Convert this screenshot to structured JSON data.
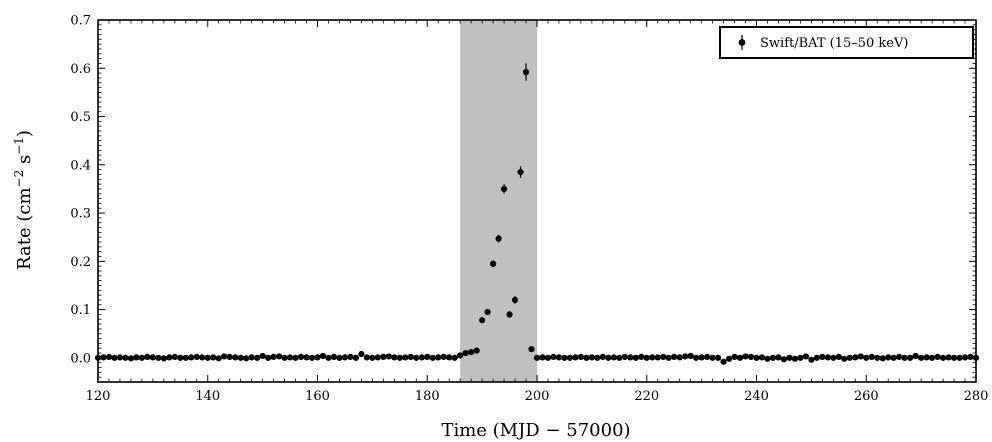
{
  "chart_data": {
    "type": "scatter",
    "xlabel": "Time (MJD − 57000)",
    "ylabel_main": "Rate (cm",
    "ylabel_sup1": "−2",
    "ylabel_mid": " s",
    "ylabel_sup2": "−1",
    "ylabel_end": ")",
    "xlim": [
      120,
      280
    ],
    "ylim": [
      -0.05,
      0.7
    ],
    "xticks": [
      "120",
      "140",
      "160",
      "180",
      "200",
      "220",
      "240",
      "260",
      "280"
    ],
    "yticks": [
      "0.0",
      "0.1",
      "0.2",
      "0.3",
      "0.4",
      "0.5",
      "0.6",
      "0.7"
    ],
    "grid": false,
    "legend_position": "top-right",
    "shaded_region": {
      "x_start": 186,
      "x_end": 200,
      "color": "#c0c0c0"
    },
    "series": [
      {
        "name": "Swift/BAT (15–50 keV)",
        "color": "#000000",
        "x": [
          120,
          121,
          122,
          123,
          124,
          125,
          126,
          127,
          128,
          129,
          130,
          131,
          132,
          133,
          134,
          135,
          136,
          137,
          138,
          139,
          140,
          141,
          142,
          143,
          144,
          145,
          146,
          147,
          148,
          149,
          150,
          151,
          152,
          153,
          154,
          155,
          156,
          157,
          158,
          159,
          160,
          161,
          162,
          163,
          164,
          165,
          166,
          167,
          168,
          169,
          170,
          171,
          172,
          173,
          174,
          175,
          176,
          177,
          178,
          179,
          180,
          181,
          182,
          183,
          184,
          185,
          186,
          187,
          188,
          189,
          190,
          191,
          192,
          193,
          194,
          195,
          196,
          197,
          198,
          199,
          200,
          201,
          202,
          203,
          204,
          205,
          206,
          207,
          208,
          209,
          210,
          211,
          212,
          213,
          214,
          215,
          216,
          217,
          218,
          219,
          220,
          221,
          222,
          223,
          224,
          225,
          226,
          227,
          228,
          229,
          230,
          231,
          232,
          233,
          234,
          235,
          236,
          237,
          238,
          239,
          240,
          241,
          242,
          243,
          244,
          245,
          246,
          247,
          248,
          249,
          250,
          251,
          252,
          253,
          254,
          255,
          256,
          257,
          258,
          259,
          260,
          261,
          262,
          263,
          264,
          265,
          266,
          267,
          268,
          269,
          270,
          271,
          272,
          273,
          274,
          275,
          276,
          277,
          278,
          279,
          280
        ],
        "y": [
          0.0,
          0.001,
          0.002,
          0.0,
          0.001,
          0.0,
          -0.001,
          0.001,
          0.0,
          0.002,
          0.001,
          0.0,
          -0.001,
          0.001,
          0.002,
          0.0,
          0.0,
          0.001,
          0.002,
          0.001,
          0.0,
          0.001,
          -0.001,
          0.003,
          0.002,
          0.001,
          0.0,
          -0.001,
          0.001,
          0.0,
          0.004,
          0.0,
          0.002,
          0.003,
          0.0,
          0.001,
          0.0,
          0.002,
          0.001,
          0.0,
          0.001,
          0.004,
          0.0,
          0.002,
          0.0,
          0.001,
          0.002,
          0.0,
          0.008,
          0.001,
          0.0,
          0.001,
          0.002,
          0.003,
          0.001,
          0.0,
          0.001,
          0.002,
          0.0,
          0.001,
          0.002,
          0.0,
          0.001,
          0.002,
          0.001,
          0.0,
          0.005,
          0.01,
          0.012,
          0.015,
          0.078,
          0.095,
          0.195,
          0.247,
          0.35,
          0.09,
          0.12,
          0.385,
          0.592,
          0.018,
          0.0,
          0.001,
          0.0,
          0.002,
          0.001,
          0.0,
          0.0,
          0.001,
          0.002,
          0.0,
          0.001,
          0.0,
          0.002,
          0.0,
          0.001,
          0.0,
          0.002,
          0.001,
          0.0,
          0.002,
          0.0,
          0.001,
          0.001,
          0.002,
          0.0,
          0.002,
          0.001,
          0.003,
          0.004,
          0.0,
          0.001,
          0.002,
          0.0,
          0.0,
          -0.008,
          -0.002,
          0.002,
          0.0,
          0.003,
          0.002,
          0.0,
          0.001,
          -0.002,
          0.0,
          0.001,
          -0.003,
          0.0,
          -0.002,
          0.0,
          0.003,
          -0.004,
          0.0,
          0.002,
          0.001,
          0.0,
          0.002,
          -0.002,
          0.0,
          0.001,
          0.003,
          0.0,
          0.002,
          0.0,
          -0.001,
          0.001,
          0.0,
          0.002,
          0.0,
          0.0,
          0.004,
          0.0,
          0.001,
          0.0,
          0.002,
          0.0,
          0.001,
          0.0,
          0.0,
          0.001,
          0.002,
          0.0
        ],
        "yerr": [
          0.003,
          0.003,
          0.003,
          0.003,
          0.003,
          0.003,
          0.003,
          0.003,
          0.003,
          0.003,
          0.003,
          0.003,
          0.003,
          0.003,
          0.003,
          0.003,
          0.003,
          0.003,
          0.003,
          0.003,
          0.003,
          0.003,
          0.003,
          0.003,
          0.003,
          0.003,
          0.003,
          0.003,
          0.003,
          0.003,
          0.003,
          0.003,
          0.003,
          0.003,
          0.003,
          0.003,
          0.003,
          0.003,
          0.003,
          0.003,
          0.003,
          0.003,
          0.003,
          0.003,
          0.003,
          0.003,
          0.003,
          0.003,
          0.003,
          0.003,
          0.003,
          0.003,
          0.003,
          0.003,
          0.003,
          0.003,
          0.003,
          0.003,
          0.003,
          0.003,
          0.003,
          0.003,
          0.003,
          0.003,
          0.003,
          0.003,
          0.004,
          0.004,
          0.004,
          0.004,
          0.005,
          0.006,
          0.007,
          0.008,
          0.01,
          0.007,
          0.008,
          0.012,
          0.018,
          0.005,
          0.003,
          0.003,
          0.003,
          0.003,
          0.003,
          0.003,
          0.003,
          0.003,
          0.003,
          0.003,
          0.003,
          0.003,
          0.003,
          0.003,
          0.003,
          0.003,
          0.003,
          0.003,
          0.003,
          0.003,
          0.003,
          0.003,
          0.003,
          0.003,
          0.003,
          0.003,
          0.003,
          0.003,
          0.003,
          0.003,
          0.003,
          0.003,
          0.003,
          0.003,
          0.003,
          0.003,
          0.003,
          0.003,
          0.003,
          0.003,
          0.003,
          0.003,
          0.003,
          0.003,
          0.003,
          0.003,
          0.003,
          0.003,
          0.003,
          0.003,
          0.003,
          0.003,
          0.003,
          0.003,
          0.003,
          0.003,
          0.003,
          0.003,
          0.003,
          0.003,
          0.003,
          0.003,
          0.003,
          0.003,
          0.003,
          0.003,
          0.003,
          0.003,
          0.003,
          0.003,
          0.003,
          0.003,
          0.003,
          0.003,
          0.003,
          0.003,
          0.003,
          0.003,
          0.003,
          0.003,
          0.003
        ]
      }
    ]
  }
}
